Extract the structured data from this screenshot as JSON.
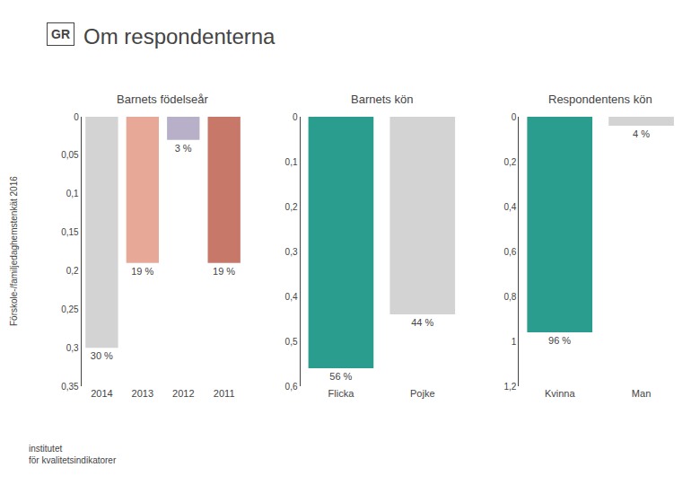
{
  "title": "Om respondenterna",
  "subtitle": "Förskole-/familjedaghemstenkät 2016",
  "annotations": [
    "GR",
    "institutet\nför kvalitetsindikatorer"
  ],
  "chart_data": [
    {
      "type": "bar",
      "title": "Barnets födelseår",
      "categories": [
        "2014",
        "2013",
        "2012",
        "2011"
      ],
      "values": [
        0.3,
        0.19,
        0.03,
        0.19
      ],
      "value_labels": [
        "30 %",
        "19 %",
        "3 %",
        "19 %"
      ],
      "colors": [
        "#d3d3d3",
        "#e8a898",
        "#b8b0c8",
        "#c87868"
      ],
      "ylim": [
        0.35,
        0
      ],
      "yticks": [
        0,
        {
          "value": 0.05,
          "label": "0,05"
        },
        {
          "value": 0.1,
          "label": "0,1"
        },
        {
          "value": 0.15,
          "label": "0,15"
        },
        {
          "value": 0.2,
          "label": "0,2"
        },
        {
          "value": 0.25,
          "label": "0,25"
        },
        {
          "value": 0.3,
          "label": "0,3"
        },
        {
          "value": 0.35,
          "label": "0,35"
        }
      ],
      "grid": false
    },
    {
      "type": "bar",
      "title": "Barnets kön",
      "categories": [
        "Flicka",
        "Pojke"
      ],
      "values": [
        0.56,
        0.44
      ],
      "value_labels": [
        "56 %",
        "44 %"
      ],
      "colors": [
        "#2a9d8f",
        "#d3d3d3"
      ],
      "ylim": [
        0.6,
        0
      ],
      "yticks": [
        0,
        {
          "value": 0.1,
          "label": "0,1"
        },
        {
          "value": 0.2,
          "label": "0,2"
        },
        {
          "value": 0.3,
          "label": "0,3"
        },
        {
          "value": 0.4,
          "label": "0,4"
        },
        {
          "value": 0.5,
          "label": "0,5"
        },
        {
          "value": 0.6,
          "label": "0,6"
        }
      ],
      "grid": false
    },
    {
      "type": "bar",
      "title": "Respondentens kön",
      "categories": [
        "Kvinna",
        "Man"
      ],
      "values": [
        0.96,
        0.04
      ],
      "value_labels": [
        "96 %",
        "4 %"
      ],
      "colors": [
        "#2a9d8f",
        "#d3d3d3"
      ],
      "ylim": [
        1.2,
        0
      ],
      "yticks": [
        0,
        {
          "value": 0.2,
          "label": "0,2"
        },
        {
          "value": 0.4,
          "label": "0,4"
        },
        {
          "value": 0.6,
          "label": "0,6"
        },
        {
          "value": 0.8,
          "label": "0,8"
        },
        1,
        {
          "value": 1.2,
          "label": "1,2"
        }
      ],
      "grid": false
    }
  ]
}
